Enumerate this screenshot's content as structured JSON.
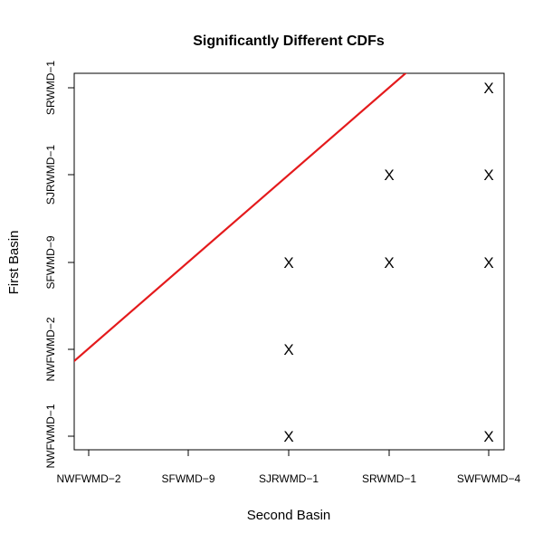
{
  "chart_data": {
    "type": "scatter",
    "title": "Significantly Different CDFs",
    "xlabel": "Second Basin",
    "ylabel": "First Basin",
    "x_categories": [
      "NWFWMD−2",
      "SFWMD−9",
      "SJRWMD−1",
      "SRWMD−1",
      "SWFWMD−4"
    ],
    "y_categories": [
      "NWFWMD−1",
      "NWFWMD−2",
      "SFWMD−9",
      "SJRWMD−1",
      "SRWMD−1"
    ],
    "marker": "X",
    "points": [
      {
        "x": "SJRWMD−1",
        "y": "NWFWMD−1"
      },
      {
        "x": "SWFWMD−4",
        "y": "NWFWMD−1"
      },
      {
        "x": "SJRWMD−1",
        "y": "NWFWMD−2"
      },
      {
        "x": "SJRWMD−1",
        "y": "SFWMD−9"
      },
      {
        "x": "SRWMD−1",
        "y": "SFWMD−9"
      },
      {
        "x": "SWFWMD−4",
        "y": "SFWMD−9"
      },
      {
        "x": "SRWMD−1",
        "y": "SJRWMD−1"
      },
      {
        "x": "SWFWMD−4",
        "y": "SJRWMD−1"
      },
      {
        "x": "SWFWMD−4",
        "y": "SRWMD−1"
      }
    ],
    "reference_line": {
      "type": "diagonal y=x",
      "color": "#e41a1c"
    },
    "grid": false,
    "legend": "none"
  }
}
